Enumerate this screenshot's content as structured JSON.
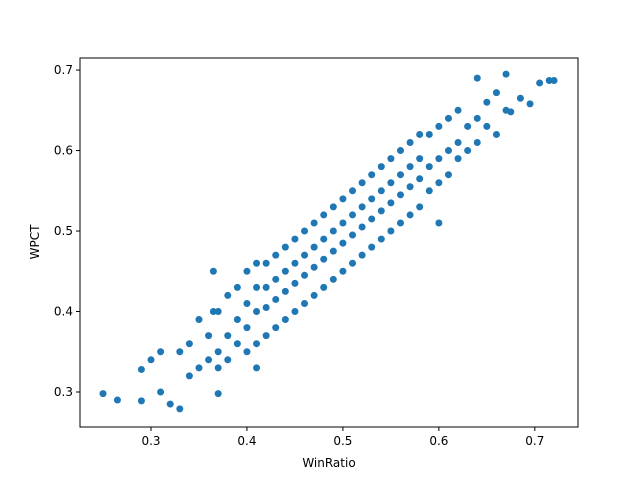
{
  "chart_data": {
    "type": "scatter",
    "x_label": "WinRatio",
    "y_label": "WPCT",
    "color": "#1f77b4",
    "xlim": [
      0.226,
      0.745
    ],
    "ylim": [
      0.2565,
      0.715
    ],
    "xticks": [
      0.3,
      0.4,
      0.5,
      0.6,
      0.7
    ],
    "yticks": [
      0.3,
      0.4,
      0.5,
      0.6,
      0.7
    ],
    "x": [
      0.25,
      0.265,
      0.29,
      0.29,
      0.3,
      0.31,
      0.31,
      0.32,
      0.33,
      0.33,
      0.34,
      0.34,
      0.35,
      0.35,
      0.36,
      0.36,
      0.365,
      0.365,
      0.37,
      0.37,
      0.37,
      0.37,
      0.38,
      0.38,
      0.38,
      0.39,
      0.39,
      0.39,
      0.4,
      0.4,
      0.4,
      0.4,
      0.41,
      0.41,
      0.41,
      0.41,
      0.41,
      0.42,
      0.42,
      0.42,
      0.42,
      0.43,
      0.43,
      0.43,
      0.43,
      0.44,
      0.44,
      0.44,
      0.44,
      0.45,
      0.45,
      0.45,
      0.45,
      0.46,
      0.46,
      0.46,
      0.46,
      0.47,
      0.47,
      0.47,
      0.47,
      0.48,
      0.48,
      0.48,
      0.48,
      0.49,
      0.49,
      0.49,
      0.49,
      0.5,
      0.5,
      0.5,
      0.5,
      0.51,
      0.51,
      0.51,
      0.51,
      0.52,
      0.52,
      0.52,
      0.52,
      0.53,
      0.53,
      0.53,
      0.53,
      0.54,
      0.54,
      0.54,
      0.54,
      0.55,
      0.55,
      0.55,
      0.55,
      0.56,
      0.56,
      0.56,
      0.56,
      0.57,
      0.57,
      0.57,
      0.57,
      0.58,
      0.58,
      0.58,
      0.58,
      0.59,
      0.59,
      0.59,
      0.6,
      0.6,
      0.6,
      0.6,
      0.61,
      0.61,
      0.61,
      0.62,
      0.62,
      0.62,
      0.63,
      0.63,
      0.64,
      0.64,
      0.64,
      0.65,
      0.65,
      0.66,
      0.66,
      0.67,
      0.67,
      0.675,
      0.685,
      0.695,
      0.705,
      0.715,
      0.72
    ],
    "y": [
      0.298,
      0.29,
      0.289,
      0.328,
      0.34,
      0.35,
      0.3,
      0.285,
      0.279,
      0.35,
      0.32,
      0.36,
      0.33,
      0.39,
      0.34,
      0.37,
      0.4,
      0.45,
      0.298,
      0.35,
      0.4,
      0.33,
      0.34,
      0.37,
      0.42,
      0.36,
      0.39,
      0.43,
      0.35,
      0.38,
      0.41,
      0.45,
      0.36,
      0.4,
      0.43,
      0.46,
      0.33,
      0.37,
      0.405,
      0.43,
      0.46,
      0.38,
      0.415,
      0.44,
      0.47,
      0.39,
      0.425,
      0.45,
      0.48,
      0.4,
      0.435,
      0.46,
      0.49,
      0.41,
      0.445,
      0.47,
      0.5,
      0.42,
      0.455,
      0.48,
      0.51,
      0.43,
      0.465,
      0.49,
      0.52,
      0.44,
      0.475,
      0.5,
      0.53,
      0.45,
      0.485,
      0.51,
      0.54,
      0.46,
      0.495,
      0.52,
      0.55,
      0.47,
      0.505,
      0.53,
      0.56,
      0.48,
      0.515,
      0.54,
      0.57,
      0.49,
      0.525,
      0.55,
      0.58,
      0.5,
      0.535,
      0.56,
      0.59,
      0.51,
      0.545,
      0.57,
      0.6,
      0.52,
      0.555,
      0.58,
      0.61,
      0.53,
      0.565,
      0.59,
      0.62,
      0.55,
      0.58,
      0.62,
      0.56,
      0.59,
      0.63,
      0.51,
      0.57,
      0.6,
      0.64,
      0.59,
      0.61,
      0.65,
      0.6,
      0.63,
      0.61,
      0.64,
      0.69,
      0.63,
      0.66,
      0.62,
      0.672,
      0.65,
      0.695,
      0.648,
      0.665,
      0.658,
      0.684,
      0.687,
      0.687
    ]
  }
}
